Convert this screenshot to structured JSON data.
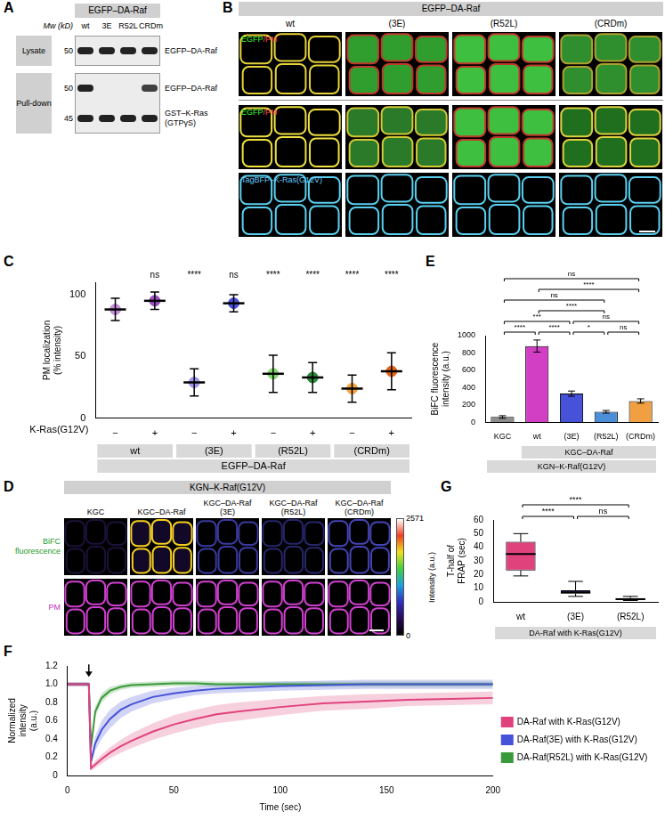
{
  "panels": {
    "A": {
      "panel": "A",
      "header": "EGFP–DA-Raf",
      "mw_label": "Mw (kD)",
      "lanes": [
        "wt",
        "3E",
        "R52L",
        "CRDm"
      ],
      "sections": [
        {
          "label": "Lysate",
          "rows": [
            {
              "mw": 50,
              "label": "EGFP–DA-Raf",
              "bands": [
                1,
                1,
                1,
                1
              ]
            }
          ]
        },
        {
          "label": "Pull-down",
          "rows": [
            {
              "mw": 50,
              "label": "EGFP–DA-Raf",
              "bands": [
                1,
                0,
                0,
                0.85
              ]
            },
            {
              "mw": 45,
              "label": "GST–K-Ras (GTPγS)",
              "bands": [
                1,
                1,
                1,
                1
              ]
            }
          ]
        }
      ]
    },
    "B": {
      "panel": "B",
      "header": "EGFP–DA-Raf",
      "columns": [
        "wt",
        "(3E)",
        "(R52L)",
        "(CRDm)"
      ],
      "rows": [
        {
          "label": "EGFP/PM"
        },
        {
          "label": "EGFP/PM"
        },
        {
          "label": "TagBFP–K-Ras(G12V)"
        }
      ]
    },
    "D": {
      "panel": "D",
      "header": "KGN–K-Raf(G12V)",
      "columns": [
        "KGC",
        "KGC–DA-Raf",
        "KGC–DA-Raf (3E)",
        "KGC–DA-Raf (R52L)",
        "KGC–DA-Raf (CRDm)"
      ],
      "rows": [
        "BiFC fluorescence",
        "PM"
      ],
      "colorbar": {
        "label": "Intensity (a.u.)",
        "range": [
          0,
          2571
        ],
        "ticks": [
          0,
          2571
        ]
      }
    }
  },
  "chart_data": [
    {
      "panel": "C",
      "type": "scatter",
      "y_label": "PM localization (% intensity)",
      "categories": [
        "−",
        "+",
        "−",
        "+",
        "−",
        "+",
        "−",
        "+"
      ],
      "row_label": "K-Ras(G12V)",
      "groups": [
        "wt",
        "(3E)",
        "(R52L)",
        "(CRDm)"
      ],
      "group_title": "EGFP–DA-Raf",
      "values": [
        88,
        95,
        29,
        93,
        36,
        33,
        24,
        38
      ],
      "error": [
        9,
        7,
        11,
        7,
        15,
        12,
        11,
        15
      ],
      "colors": [
        "#c58fd8",
        "#9b4fc0",
        "#9e96e8",
        "#4a52d8",
        "#86d86f",
        "#2e8b3a",
        "#f2a541",
        "#e2651c"
      ],
      "significance": [
        null,
        "ns",
        "****",
        "ns",
        "****",
        "****",
        "****",
        "****"
      ],
      "ylim": [
        0,
        110
      ],
      "yticks": [
        0,
        50,
        100
      ],
      "grid": false
    },
    {
      "panel": "E",
      "type": "bar",
      "y_label": "BiFC fluorescence intensity (a.u.)",
      "categories": [
        "KGC",
        "wt",
        "(3E)",
        "(R52L)",
        "(CRDm)"
      ],
      "values": [
        60,
        880,
        330,
        120,
        245
      ],
      "error": [
        15,
        70,
        30,
        15,
        25
      ],
      "colors": [
        "#8c8c8c",
        "#d23ec4",
        "#4652d8",
        "#4a8fd8",
        "#f0a040"
      ],
      "subgroup": {
        "label": "KGC–DA-Raf",
        "categories": [
          "wt",
          "(3E)",
          "(R52L)",
          "(CRDm)"
        ]
      },
      "group_title": "KGN–K-Raf(G12V)",
      "comparisons": [
        {
          "pair": [
            "KGC",
            "wt"
          ],
          "label": "****"
        },
        {
          "pair": [
            "KGC",
            "(3E)"
          ],
          "label": "***"
        },
        {
          "pair": [
            "KGC",
            "(R52L)"
          ],
          "label": "ns"
        },
        {
          "pair": [
            "KGC",
            "(CRDm)"
          ],
          "label": "ns"
        },
        {
          "pair": [
            "wt",
            "(3E)"
          ],
          "label": "****"
        },
        {
          "pair": [
            "wt",
            "(R52L)"
          ],
          "label": "****"
        },
        {
          "pair": [
            "wt",
            "(CRDm)"
          ],
          "label": "****"
        },
        {
          "pair": [
            "(3E)",
            "(R52L)"
          ],
          "label": "*"
        },
        {
          "pair": [
            "(3E)",
            "(CRDm)"
          ],
          "label": "ns"
        },
        {
          "pair": [
            "(R52L)",
            "(CRDm)"
          ],
          "label": "ns"
        }
      ],
      "ylim": [
        0,
        1000
      ],
      "yticks": [
        0,
        200,
        400,
        600,
        800,
        1000
      ],
      "grid": false
    },
    {
      "panel": "G",
      "type": "box",
      "y_label": "T-half of FRAP (sec)",
      "categories": [
        "wt",
        "(3E)",
        "(R52L)"
      ],
      "boxes": [
        {
          "min": 19,
          "q1": 23,
          "median": 35,
          "q3": 44,
          "max": 50
        },
        {
          "min": 4,
          "q1": 6,
          "median": 7,
          "q3": 8.5,
          "max": 15
        },
        {
          "min": 1,
          "q1": 1.5,
          "median": 2,
          "q3": 2.8,
          "max": 4
        }
      ],
      "colors": [
        "#e0427c",
        "#4652d8",
        "#3a8a5a"
      ],
      "group_title": "DA-Raf with K-Ras(G12V)",
      "comparisons": [
        {
          "pair": [
            "wt",
            "(3E)"
          ],
          "label": "****"
        },
        {
          "pair": [
            "wt",
            "(R52L)"
          ],
          "label": "****"
        },
        {
          "pair": [
            "(3E)",
            "(R52L)"
          ],
          "label": "ns"
        }
      ],
      "ylim": [
        0,
        60
      ],
      "yticks": [
        0,
        10,
        20,
        30,
        40,
        50,
        60
      ],
      "grid": false
    },
    {
      "panel": "F",
      "type": "line",
      "x_label": "Time (sec)",
      "y_label": "Normalized intensity (a.u.)",
      "x": [
        0,
        4,
        8,
        10,
        11,
        13,
        16,
        20,
        25,
        30,
        40,
        50,
        60,
        70,
        80,
        100,
        120,
        140,
        160,
        180,
        200
      ],
      "series": [
        {
          "name": "DA-Raf with K-Ras(G12V)",
          "color": "#e0427c",
          "values": [
            1.0,
            1.0,
            1.0,
            1.0,
            0.08,
            0.12,
            0.18,
            0.25,
            0.32,
            0.38,
            0.48,
            0.56,
            0.62,
            0.67,
            0.7,
            0.75,
            0.79,
            0.81,
            0.83,
            0.84,
            0.85
          ],
          "error": [
            0.02,
            0.02,
            0.02,
            0.02,
            0.03,
            0.04,
            0.05,
            0.06,
            0.07,
            0.08,
            0.09,
            0.1,
            0.1,
            0.1,
            0.1,
            0.09,
            0.08,
            0.08,
            0.07,
            0.07,
            0.07
          ]
        },
        {
          "name": "DA-Raf(3E) with K-Ras(G12V)",
          "color": "#4652d8",
          "values": [
            1.0,
            1.0,
            1.0,
            1.0,
            0.15,
            0.35,
            0.5,
            0.62,
            0.72,
            0.78,
            0.86,
            0.9,
            0.93,
            0.95,
            0.96,
            0.98,
            0.99,
            1.0,
            1.0,
            1.0,
            1.0
          ],
          "error": [
            0.02,
            0.02,
            0.02,
            0.02,
            0.04,
            0.08,
            0.1,
            0.1,
            0.09,
            0.08,
            0.07,
            0.06,
            0.05,
            0.05,
            0.05,
            0.05,
            0.05,
            0.05,
            0.05,
            0.05,
            0.05
          ]
        },
        {
          "name": "DA-Raf(R52L) with K-Ras(G12V)",
          "color": "#3a9a3a",
          "values": [
            1.0,
            1.0,
            1.0,
            1.0,
            0.3,
            0.7,
            0.85,
            0.93,
            0.97,
            0.99,
            1.0,
            1.01,
            1.01,
            1.0,
            1.0,
            1.0,
            1.0,
            1.0,
            1.0,
            1.0,
            1.0
          ],
          "error": [
            0.02,
            0.02,
            0.02,
            0.02,
            0.05,
            0.06,
            0.05,
            0.04,
            0.03,
            0.03,
            0.03,
            0.03,
            0.03,
            0.03,
            0.03,
            0.03,
            0.03,
            0.03,
            0.03,
            0.03,
            0.03
          ]
        }
      ],
      "arrow": {
        "x": 10,
        "y": 1.08
      },
      "xlim": [
        0,
        200
      ],
      "xticks": [
        0,
        50,
        100,
        150,
        200
      ],
      "ylim": [
        0,
        1.2
      ],
      "yticks": [
        0,
        0.2,
        0.4,
        0.6,
        0.8,
        {
          "value": 1,
          "label": "1.0"
        },
        1.2
      ],
      "legend": "right",
      "grid": false
    }
  ]
}
